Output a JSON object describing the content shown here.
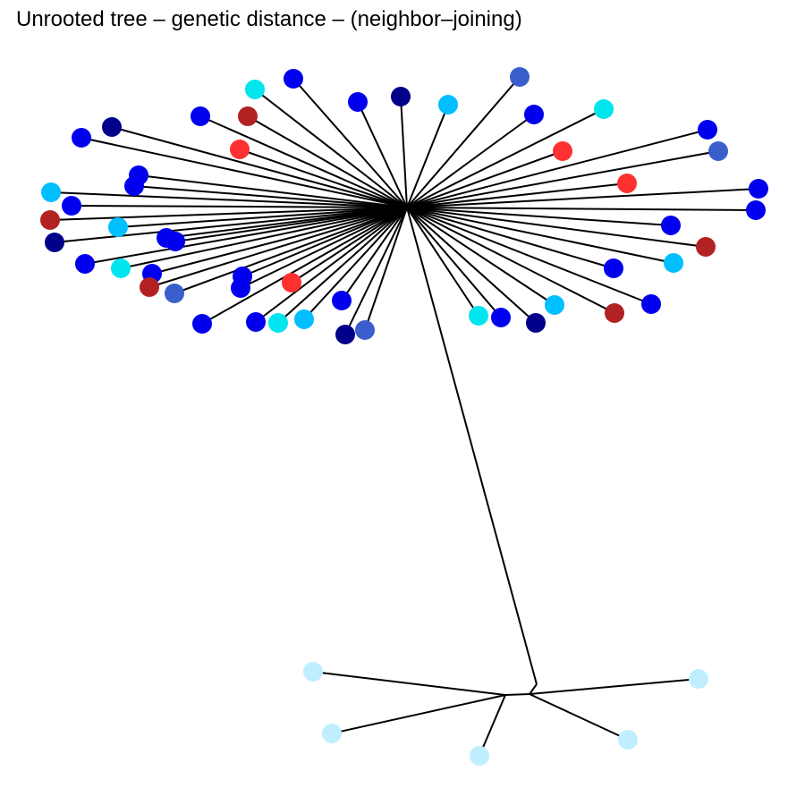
{
  "title": "Unrooted tree – genetic distance – (neighbor–joining)",
  "colors": {
    "blue": "#0000ee",
    "navy": "#00008b",
    "royal": "#3a5fcd",
    "cyan": "#00e5ee",
    "sky": "#00bfff",
    "red": "#ff3030",
    "brick": "#b22222",
    "pale": "#bfefff",
    "edge": "#000000"
  },
  "tree": {
    "type": "unrooted-neighbor-joining",
    "groups": [
      {
        "id": "main-cluster",
        "tips": [
          "cyan",
          "blue",
          "blue",
          "navy",
          "sky",
          "royal",
          "blue",
          "cyan",
          "navy",
          "brick",
          "blue",
          "red",
          "blue",
          "red",
          "blue",
          "blue",
          "blue",
          "royal",
          "blue",
          "red",
          "blue",
          "brick",
          "blue",
          "sky",
          "brick",
          "navy",
          "blue",
          "blue",
          "sky",
          "cyan",
          "blue",
          "blue",
          "brick",
          "royal",
          "blue",
          "blue",
          "red",
          "blue",
          "cyan",
          "sky",
          "blue",
          "navy",
          "royal",
          "cyan",
          "blue",
          "navy",
          "sky",
          "brick",
          "blue",
          "blue",
          "sky",
          "blue",
          "blue"
        ]
      },
      {
        "id": "outgroup-cluster",
        "tips": [
          "pale",
          "pale",
          "pale",
          "pale",
          "pale"
        ]
      }
    ]
  }
}
